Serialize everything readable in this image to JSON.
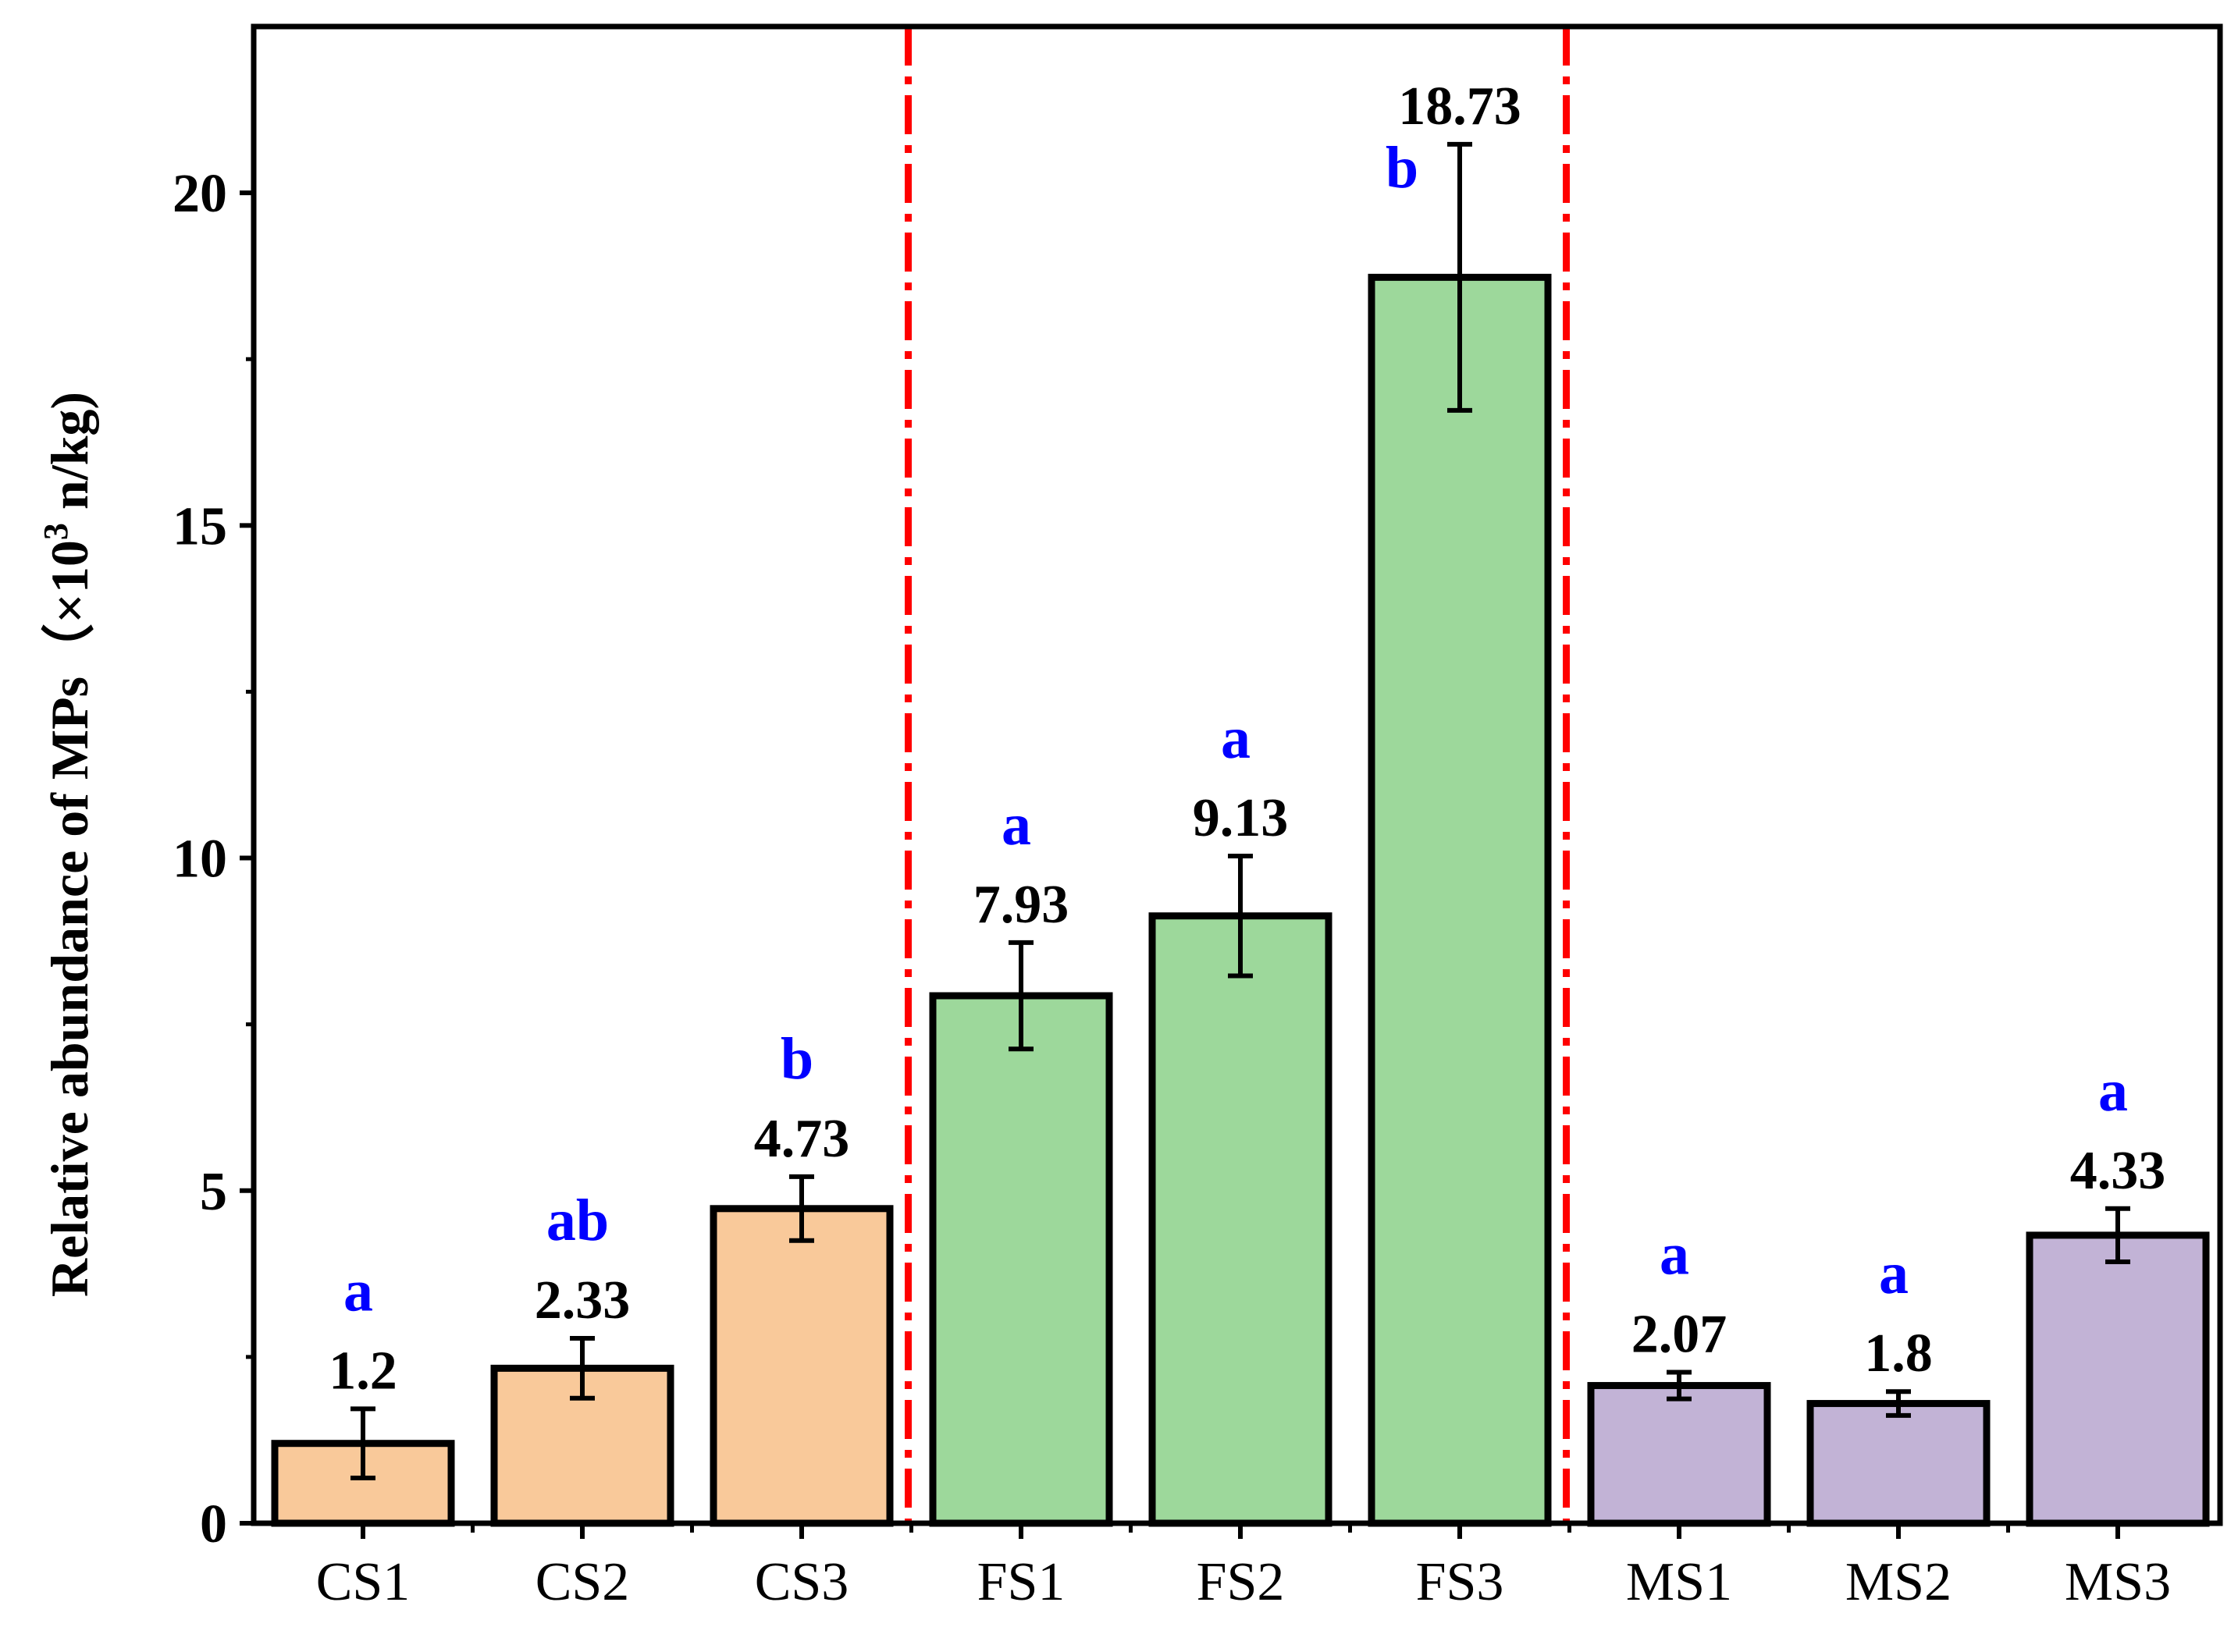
{
  "chart_data": {
    "type": "bar",
    "title": "",
    "xlabel": "",
    "ylabel": "Relative abundance of MPs（×10",
    "ylabel_superscript": "3",
    "ylabel_suffix": " n/kg)",
    "ylim": [
      0,
      22.5
    ],
    "yticks": [
      0,
      5,
      10,
      15,
      20
    ],
    "categories": [
      "CS1",
      "CS2",
      "CS3",
      "FS1",
      "FS2",
      "FS3",
      "MS1",
      "MS2",
      "MS3"
    ],
    "values": [
      1.2,
      2.33,
      4.73,
      7.93,
      9.13,
      18.73,
      2.07,
      1.8,
      4.33
    ],
    "value_labels": [
      "1.2",
      "2.33",
      "4.73",
      "7.93",
      "9.13",
      "18.73",
      "2.07",
      "1.8",
      "4.33"
    ],
    "errors": [
      0.52,
      0.45,
      0.48,
      0.8,
      0.9,
      2.0,
      0.2,
      0.18,
      0.4
    ],
    "significance": [
      "a",
      "ab",
      "b",
      "a",
      "a",
      "b",
      "a",
      "a",
      "a"
    ],
    "groups": [
      {
        "name": "CS",
        "indices": [
          0,
          1,
          2
        ],
        "color": "#F9C99A"
      },
      {
        "name": "FS",
        "indices": [
          3,
          4,
          5
        ],
        "color": "#9DD89B"
      },
      {
        "name": "MS",
        "indices": [
          6,
          7,
          8
        ],
        "color": "#C2B3D6"
      }
    ],
    "separator_color": "#FF0000",
    "significance_color": "#0000FF",
    "grid": false,
    "legend": "none"
  }
}
